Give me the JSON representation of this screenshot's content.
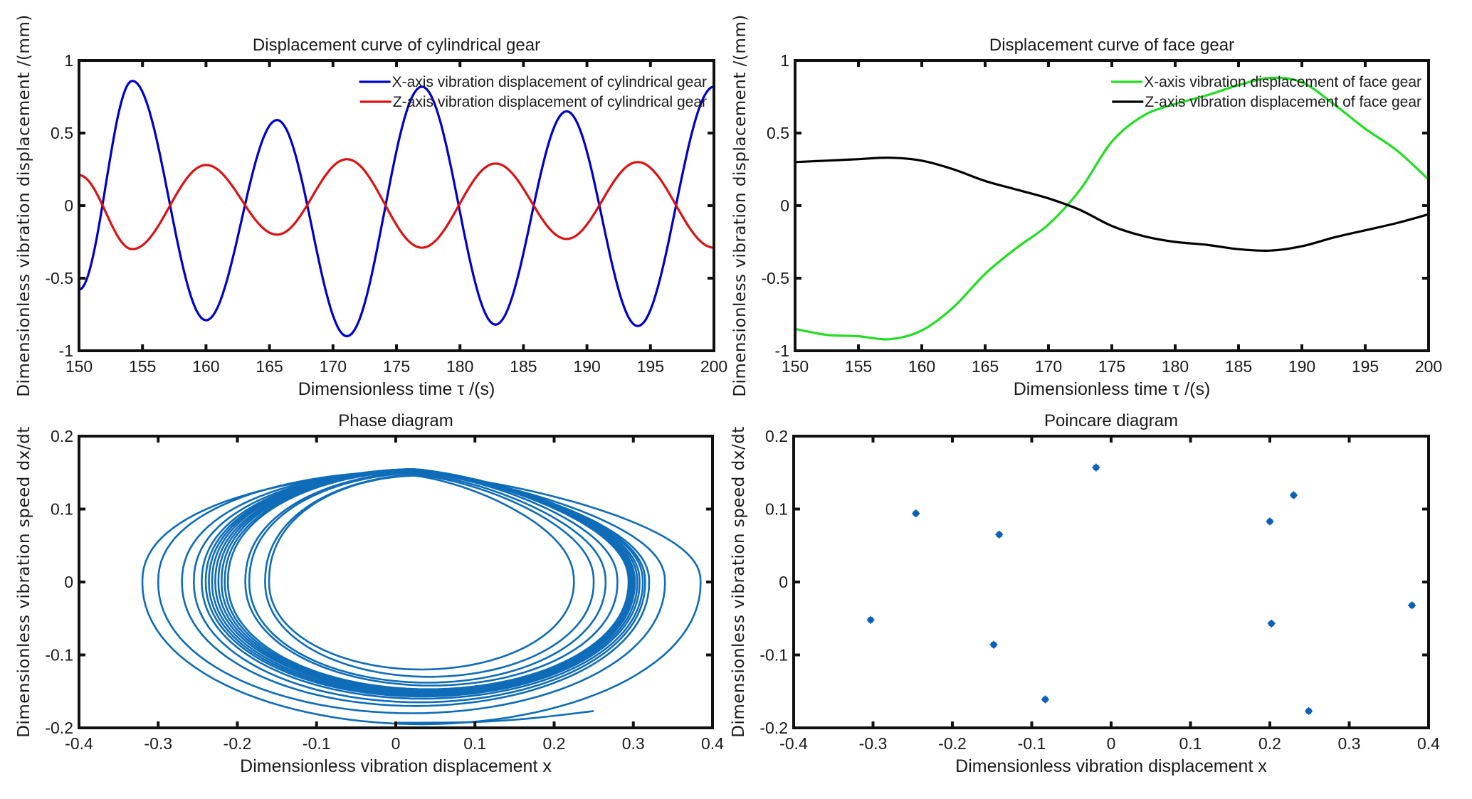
{
  "chart_data": [
    {
      "id": "cyl",
      "type": "line",
      "title": "Displacement curve of cylindrical gear",
      "xlabel": "Dimensionless time τ /(s)",
      "ylabel": "Dimensionless vibration displacement /(mm)",
      "xlim": [
        150,
        200
      ],
      "ylim": [
        -1,
        1
      ],
      "xticks": [
        150,
        155,
        160,
        165,
        170,
        175,
        180,
        185,
        190,
        195,
        200
      ],
      "yticks": [
        -1,
        -0.5,
        0,
        0.5,
        1
      ],
      "xtick_labels": [
        "150",
        "155",
        "160",
        "165",
        "170",
        "175",
        "180",
        "185",
        "190",
        "195",
        "200"
      ],
      "ytick_labels": [
        "-1",
        "-0.5",
        "0",
        "0.5",
        "1"
      ],
      "grid": false,
      "legend": "top-right",
      "series": [
        {
          "name": "X-axis vibration displacement of cylindrical gear",
          "color": "#0000cc",
          "x": [
            150,
            154.2,
            160,
            165.6,
            171.1,
            177,
            182.8,
            188.4,
            194,
            200
          ],
          "y": [
            -0.58,
            0.86,
            -0.79,
            0.59,
            -0.9,
            0.82,
            -0.82,
            0.65,
            -0.83,
            0.82
          ]
        },
        {
          "name": "Z-axis vibration displacement of cylindrical gear",
          "color": "#dd1111",
          "x": [
            150,
            154.2,
            160,
            165.6,
            171.1,
            177,
            182.8,
            188.4,
            194,
            200
          ],
          "y": [
            0.21,
            -0.3,
            0.28,
            -0.2,
            0.32,
            -0.29,
            0.29,
            -0.23,
            0.3,
            -0.29
          ]
        }
      ]
    },
    {
      "id": "face",
      "type": "line",
      "title": "Displacement curve of face gear",
      "xlabel": "Dimensionless time τ /(s)",
      "ylabel": "Dimensionless vibration displacement /(mm)",
      "xlim": [
        150,
        200
      ],
      "ylim": [
        -1,
        1
      ],
      "xticks": [
        150,
        155,
        160,
        165,
        170,
        175,
        180,
        185,
        190,
        195,
        200
      ],
      "yticks": [
        -1,
        -0.5,
        0,
        0.5,
        1
      ],
      "xtick_labels": [
        "150",
        "155",
        "160",
        "165",
        "170",
        "175",
        "180",
        "185",
        "190",
        "195",
        "200"
      ],
      "ytick_labels": [
        "-1",
        "-0.5",
        "0",
        "0.5",
        "1"
      ],
      "grid": false,
      "legend": "top-right",
      "series": [
        {
          "name": "X-axis vibration displacement of face gear",
          "color": "#22dd22",
          "x": [
            150,
            152.5,
            155,
            157.5,
            160,
            162.5,
            165,
            167.5,
            170,
            172.5,
            175,
            177.5,
            180,
            182.5,
            185,
            187.5,
            190,
            192.5,
            195,
            197.5,
            200
          ],
          "y": [
            -0.85,
            -0.89,
            -0.9,
            -0.92,
            -0.86,
            -0.7,
            -0.47,
            -0.29,
            -0.13,
            0.11,
            0.44,
            0.62,
            0.7,
            0.76,
            0.83,
            0.88,
            0.85,
            0.7,
            0.53,
            0.38,
            0.18
          ]
        },
        {
          "name": "Z-axis vibration displacement of face gear",
          "color": "#000000",
          "x": [
            150,
            152.5,
            155,
            157.5,
            160,
            162.5,
            165,
            167.5,
            170,
            172.5,
            175,
            177.5,
            180,
            182.5,
            185,
            187.5,
            190,
            192.5,
            195,
            197.5,
            200
          ],
          "y": [
            0.3,
            0.31,
            0.32,
            0.33,
            0.31,
            0.25,
            0.17,
            0.11,
            0.05,
            -0.03,
            -0.14,
            -0.21,
            -0.25,
            -0.27,
            -0.3,
            -0.31,
            -0.28,
            -0.22,
            -0.17,
            -0.12,
            -0.06
          ]
        }
      ]
    },
    {
      "id": "phase",
      "type": "line",
      "title": "Phase diagram",
      "xlabel": "Dimensionless vibration displacement x",
      "ylabel": "Dimensionless vibration speed dx/dt",
      "xlim": [
        -0.4,
        0.4
      ],
      "ylim": [
        -0.2,
        0.2
      ],
      "xticks": [
        -0.4,
        -0.3,
        -0.2,
        -0.1,
        0,
        0.1,
        0.2,
        0.3,
        0.4
      ],
      "yticks": [
        -0.2,
        -0.1,
        0,
        0.1,
        0.2
      ],
      "xtick_labels": [
        "-0.4",
        "-0.3",
        "-0.2",
        "-0.1",
        "0",
        "0.1",
        "0.2",
        "0.3",
        "0.4"
      ],
      "ytick_labels": [
        "-0.2",
        "-0.1",
        "0",
        "0.1",
        "0.2"
      ],
      "grid": false,
      "series": [
        {
          "name": "trajectory",
          "color": "#0e6cb8",
          "loops": [
            {
              "xmin": -0.32,
              "xmax": 0.385,
              "vmax": 0.15,
              "vmin": -0.195
            },
            {
              "xmin": -0.3,
              "xmax": 0.34,
              "vmax": 0.152,
              "vmin": -0.18
            },
            {
              "xmin": -0.27,
              "xmax": 0.32,
              "vmax": 0.153,
              "vmin": -0.17
            },
            {
              "xmin": -0.255,
              "xmax": 0.315,
              "vmax": 0.154,
              "vmin": -0.165
            },
            {
              "xmin": -0.245,
              "xmax": 0.312,
              "vmax": 0.155,
              "vmin": -0.16
            },
            {
              "xmin": -0.24,
              "xmax": 0.308,
              "vmax": 0.155,
              "vmin": -0.157
            },
            {
              "xmin": -0.236,
              "xmax": 0.305,
              "vmax": 0.155,
              "vmin": -0.155
            },
            {
              "xmin": -0.232,
              "xmax": 0.302,
              "vmax": 0.155,
              "vmin": -0.153
            },
            {
              "xmin": -0.228,
              "xmax": 0.3,
              "vmax": 0.154,
              "vmin": -0.151
            },
            {
              "xmin": -0.224,
              "xmax": 0.298,
              "vmax": 0.154,
              "vmin": -0.15
            },
            {
              "xmin": -0.22,
              "xmax": 0.296,
              "vmax": 0.154,
              "vmin": -0.149
            },
            {
              "xmin": -0.216,
              "xmax": 0.295,
              "vmax": 0.153,
              "vmin": -0.148
            },
            {
              "xmin": -0.212,
              "xmax": 0.294,
              "vmax": 0.153,
              "vmin": -0.147
            },
            {
              "xmin": -0.19,
              "xmax": 0.28,
              "vmax": 0.152,
              "vmin": -0.142
            },
            {
              "xmin": -0.185,
              "xmax": 0.265,
              "vmax": 0.15,
              "vmin": -0.138
            },
            {
              "xmin": -0.165,
              "xmax": 0.25,
              "vmax": 0.148,
              "vmin": -0.13
            },
            {
              "xmin": -0.16,
              "xmax": 0.225,
              "vmax": 0.146,
              "vmin": -0.12
            }
          ],
          "tail": {
            "x": [
              0.0,
              0.1,
              0.17,
              0.25
            ],
            "y": [
              -0.193,
              -0.192,
              -0.187,
              -0.177
            ]
          }
        }
      ]
    },
    {
      "id": "poincare",
      "type": "scatter",
      "title": "Poincare diagram",
      "xlabel": "Dimensionless vibration displacement x",
      "ylabel": "Dimensionless vibration speed dx/dt",
      "xlim": [
        -0.4,
        0.4
      ],
      "ylim": [
        -0.2,
        0.2
      ],
      "xticks": [
        -0.4,
        -0.3,
        -0.2,
        -0.1,
        0,
        0.1,
        0.2,
        0.3,
        0.4
      ],
      "yticks": [
        -0.2,
        -0.1,
        0,
        0.1,
        0.2
      ],
      "xtick_labels": [
        "-0.4",
        "-0.3",
        "-0.2",
        "-0.1",
        "0",
        "0.1",
        "0.2",
        "0.3",
        "0.4"
      ],
      "ytick_labels": [
        "-0.2",
        "-0.1",
        "0",
        "0.1",
        "0.2"
      ],
      "grid": false,
      "series": [
        {
          "name": "Poincare points",
          "color": "#0a62b8",
          "x": [
            -0.303,
            -0.246,
            -0.141,
            -0.148,
            -0.083,
            -0.019,
            0.2,
            0.23,
            0.202,
            0.249,
            0.379
          ],
          "y": [
            -0.052,
            0.094,
            0.065,
            -0.086,
            -0.161,
            0.157,
            0.083,
            0.119,
            -0.057,
            -0.177,
            -0.032
          ]
        }
      ]
    }
  ]
}
